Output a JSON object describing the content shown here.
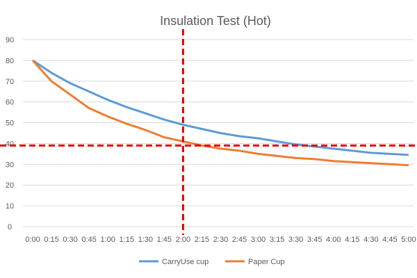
{
  "chart_data": {
    "type": "line",
    "title": "Insulation Test (Hot)",
    "xlabel": "",
    "ylabel": "",
    "x": [
      "0:00",
      "0:15",
      "0:30",
      "0:45",
      "1:00",
      "1:15",
      "1:30",
      "1:45",
      "2:00",
      "2:15",
      "2:30",
      "2:45",
      "3:00",
      "3:15",
      "3:30",
      "3:45",
      "4:00",
      "4:15",
      "4:30",
      "4:45",
      "5:00"
    ],
    "yticks": [
      0,
      10,
      20,
      30,
      40,
      50,
      60,
      70,
      80,
      90
    ],
    "ylim": [
      0,
      90
    ],
    "grid": true,
    "legend": "bottom",
    "series": [
      {
        "name": "CarryUse cup",
        "color": "#5b9bd5",
        "values": [
          80,
          74,
          69,
          65,
          61,
          57.5,
          54.5,
          51.5,
          49,
          47,
          45,
          43.5,
          42.5,
          41,
          39.5,
          38.5,
          37.5,
          36.5,
          35.5,
          35,
          34.5
        ]
      },
      {
        "name": "Paper Cup",
        "color": "#ed7d31",
        "values": [
          80,
          70,
          63.5,
          57,
          53,
          49.5,
          46.5,
          43,
          41,
          39,
          37.5,
          36.5,
          35,
          34,
          33,
          32.5,
          31.5,
          31,
          30.5,
          30,
          29.5
        ]
      }
    ],
    "annotations": [
      {
        "type": "vertical-dashed-line",
        "x": "2:00",
        "color": "#e00000"
      },
      {
        "type": "horizontal-dashed-line",
        "y": 39,
        "color": "#e00000"
      }
    ]
  }
}
